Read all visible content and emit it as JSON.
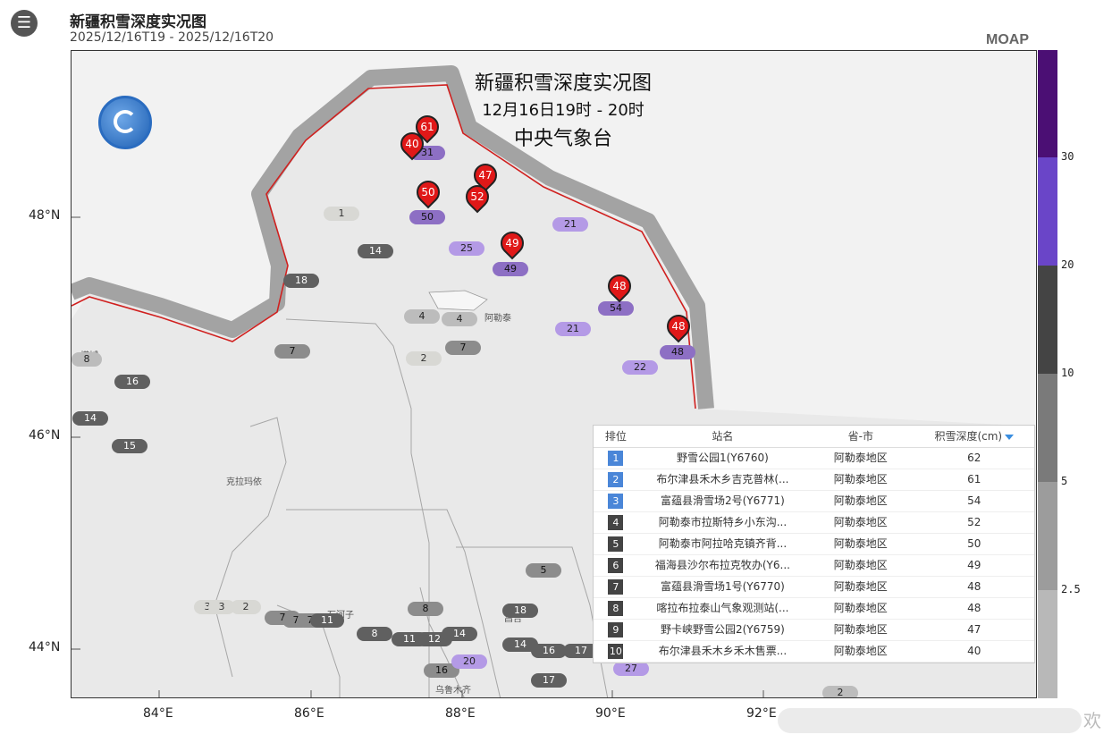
{
  "header": {
    "menu_icon": "menu-icon",
    "title": "新疆积雪深度实况图",
    "time_start": "2025/12/16T19",
    "time_sep": " - ",
    "time_end": "2025/12/16T20",
    "brand": "MOAP"
  },
  "map": {
    "overlay_title": "新疆积雪深度实况图",
    "overlay_time": "12月16日19时 - 20时",
    "overlay_org": "中央气象台",
    "logo": "weather-logo-icon",
    "lat_labels": [
      "48°N",
      "46°N",
      "44°N"
    ],
    "lon_labels": [
      "84°E",
      "86°E",
      "88°E",
      "90°E",
      "92°E"
    ],
    "places": [
      "阿勒泰",
      "塔城",
      "克拉玛依",
      "石河子",
      "昌吉",
      "乌鲁木齐"
    ],
    "chips": [
      "1",
      "14",
      "18",
      "4",
      "4",
      "7",
      "2",
      "7",
      "8",
      "16",
      "14",
      "15",
      "50",
      "25",
      "49",
      "21",
      "21",
      "54",
      "22",
      "48",
      "31",
      "3",
      "3",
      "2",
      "7",
      "7",
      "7",
      "11",
      "8",
      "11",
      "12",
      "14",
      "8",
      "16",
      "20",
      "18",
      "14",
      "16",
      "17",
      "17",
      "5",
      "27",
      "2"
    ],
    "pins": [
      "61",
      "40",
      "47",
      "52",
      "50",
      "49",
      "48",
      "48"
    ]
  },
  "legend": {
    "labels": [
      "30",
      "20",
      "10",
      "5",
      "2.5"
    ],
    "colors": [
      "#4b0f74",
      "#6a45c8",
      "#8a8a8a",
      "#5a5a5a",
      "#444444",
      "#7a7a7a",
      "#9c9c9c",
      "#b8b8b8",
      "#d4d4d0"
    ]
  },
  "table": {
    "headers": {
      "rank": "排位",
      "name": "站名",
      "prov": "省-市",
      "val": "积雪深度(cm)"
    },
    "rows": [
      {
        "rank": "1",
        "name": "野雪公园1(Y6760)",
        "prov": "阿勒泰地区",
        "val": "62"
      },
      {
        "rank": "2",
        "name": "布尔津县禾木乡吉克普林(...",
        "prov": "阿勒泰地区",
        "val": "61"
      },
      {
        "rank": "3",
        "name": "富蕴县滑雪场2号(Y6771)",
        "prov": "阿勒泰地区",
        "val": "54"
      },
      {
        "rank": "4",
        "name": "阿勒泰市拉斯特乡小东沟...",
        "prov": "阿勒泰地区",
        "val": "52"
      },
      {
        "rank": "5",
        "name": "阿勒泰市阿拉哈克镇齐背...",
        "prov": "阿勒泰地区",
        "val": "50"
      },
      {
        "rank": "6",
        "name": "福海县沙尔布拉克牧办(Y6...",
        "prov": "阿勒泰地区",
        "val": "49"
      },
      {
        "rank": "7",
        "name": "富蕴县滑雪场1号(Y6770)",
        "prov": "阿勒泰地区",
        "val": "48"
      },
      {
        "rank": "8",
        "name": "喀拉布拉泰山气象观测站(...",
        "prov": "阿勒泰地区",
        "val": "48"
      },
      {
        "rank": "9",
        "name": "野卡峡野雪公园2(Y6759)",
        "prov": "阿勒泰地区",
        "val": "47"
      },
      {
        "rank": "10",
        "name": "布尔津县禾木乡禾木售票...",
        "prov": "阿勒泰地区",
        "val": "40"
      }
    ]
  },
  "footer": {
    "comment_char": "欢"
  }
}
